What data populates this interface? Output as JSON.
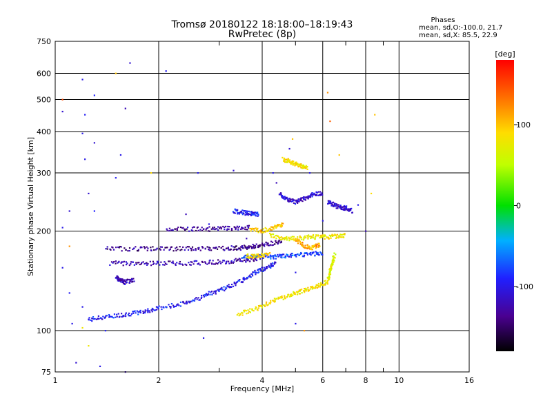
{
  "chart_data": {
    "type": "scatter",
    "title": "Tromsø 20180122 18:18:00–18:19:43",
    "subtitle": "RwPretec (8p)",
    "xlabel": "Frequency [MHz]",
    "ylabel": "Stationary phase Virtual Height [km]",
    "x_scale": "log",
    "y_scale": "log",
    "xlim": [
      1,
      16
    ],
    "ylim": [
      75,
      750
    ],
    "x_ticks": [
      1,
      2,
      4,
      6,
      8,
      10,
      16
    ],
    "x_tick_labels": [
      "1",
      "2",
      "4",
      "6",
      "8",
      "10",
      "16"
    ],
    "x_minor_ticks": [
      3,
      5,
      7,
      9
    ],
    "y_ticks": [
      75,
      100,
      200,
      300,
      400,
      500,
      600,
      750
    ],
    "y_tick_labels": [
      "75",
      "100",
      "200",
      "300",
      "400",
      "500",
      "600",
      "750"
    ],
    "grid": true,
    "phase_info": {
      "heading": "Phases",
      "line_o": "mean, sd,O:-100.0, 21.7",
      "line_x": "mean, sd,X:  85.5, 22.9"
    },
    "colorbar": {
      "label": "[deg]",
      "range": [
        -180,
        180
      ],
      "ticks": [
        100,
        0,
        -100
      ],
      "tick_labels": [
        "100",
        "0",
        "-100"
      ]
    },
    "traces": [
      {
        "points": [
          [
            1.25,
            108
          ],
          [
            1.4,
            110
          ],
          [
            1.6,
            112
          ],
          [
            1.8,
            114
          ],
          [
            2.0,
            117
          ],
          [
            2.3,
            120
          ],
          [
            2.6,
            125
          ],
          [
            2.9,
            131
          ],
          [
            3.2,
            136
          ],
          [
            3.5,
            142
          ],
          [
            3.8,
            150
          ],
          [
            4.1,
            155
          ],
          [
            4.4,
            160
          ]
        ],
        "phase": -95
      },
      {
        "points": [
          [
            1.4,
            177
          ],
          [
            1.7,
            177
          ],
          [
            2.0,
            177
          ],
          [
            2.4,
            177
          ],
          [
            2.8,
            177
          ],
          [
            3.2,
            178
          ],
          [
            3.5,
            178
          ],
          [
            3.8,
            180
          ],
          [
            4.2,
            183
          ],
          [
            4.6,
            188
          ]
        ],
        "phase": -135
      },
      {
        "points": [
          [
            1.45,
            160
          ],
          [
            1.7,
            160
          ],
          [
            2.0,
            160
          ],
          [
            2.4,
            160
          ],
          [
            2.8,
            161
          ],
          [
            3.2,
            162
          ],
          [
            3.6,
            164
          ],
          [
            4.0,
            166
          ]
        ],
        "phase": -125
      },
      {
        "points": [
          [
            2.1,
            202
          ],
          [
            2.5,
            203
          ],
          [
            2.9,
            203
          ],
          [
            3.3,
            204
          ],
          [
            3.7,
            205
          ]
        ],
        "phase": -130
      },
      {
        "points": [
          [
            3.5,
            166
          ],
          [
            3.8,
            168
          ],
          [
            4.2,
            167
          ],
          [
            4.6,
            168
          ],
          [
            5.0,
            170
          ],
          [
            5.5,
            170
          ],
          [
            6.0,
            172
          ]
        ],
        "phase": -80
      },
      {
        "points": [
          [
            3.6,
            168
          ],
          [
            3.9,
            168
          ],
          [
            4.2,
            170
          ]
        ],
        "phase": 85
      },
      {
        "points": [
          [
            4.2,
            195
          ],
          [
            4.6,
            190
          ],
          [
            5.0,
            190
          ],
          [
            5.5,
            192
          ],
          [
            6.0,
            192
          ],
          [
            6.5,
            193
          ],
          [
            7.0,
            194
          ]
        ],
        "phase": 80
      },
      {
        "points": [
          [
            3.4,
            112
          ],
          [
            3.8,
            116
          ],
          [
            4.2,
            122
          ],
          [
            4.6,
            126
          ],
          [
            5.0,
            130
          ],
          [
            5.4,
            133
          ],
          [
            5.8,
            137
          ],
          [
            6.2,
            140
          ]
        ],
        "phase": 80
      },
      {
        "points": [
          [
            6.2,
            140
          ],
          [
            6.3,
            152
          ],
          [
            6.4,
            160
          ],
          [
            6.5,
            170
          ]
        ],
        "phase": 70
      },
      {
        "points": [
          [
            4.5,
            260
          ],
          [
            4.7,
            250
          ],
          [
            5.0,
            245
          ],
          [
            5.3,
            250
          ],
          [
            5.6,
            258
          ],
          [
            6.0,
            260
          ]
        ],
        "phase": -110
      },
      {
        "points": [
          [
            4.6,
            330
          ],
          [
            4.8,
            325
          ],
          [
            5.0,
            320
          ],
          [
            5.2,
            315
          ],
          [
            5.4,
            310
          ]
        ],
        "phase": 85
      },
      {
        "points": [
          [
            6.2,
            245
          ],
          [
            6.5,
            240
          ],
          [
            6.8,
            235
          ],
          [
            7.0,
            235
          ],
          [
            7.3,
            230
          ]
        ],
        "phase": -110
      },
      {
        "points": [
          [
            1.5,
            145
          ],
          [
            1.55,
            142
          ],
          [
            1.6,
            140
          ],
          [
            1.7,
            143
          ]
        ],
        "phase": -120
      },
      {
        "points": [
          [
            3.3,
            230
          ],
          [
            3.5,
            228
          ],
          [
            3.7,
            226
          ],
          [
            3.9,
            225
          ]
        ],
        "phase": -95
      },
      {
        "points": [
          [
            3.7,
            202
          ],
          [
            4.0,
            200
          ],
          [
            4.3,
            205
          ],
          [
            4.6,
            210
          ]
        ],
        "phase": 100
      },
      {
        "points": [
          [
            5.0,
            190
          ],
          [
            5.3,
            180
          ],
          [
            5.6,
            178
          ],
          [
            5.9,
            182
          ]
        ],
        "phase": 110
      }
    ],
    "scattered_points": [
      [
        1.05,
        460,
        -110
      ],
      [
        1.2,
        575,
        -100
      ],
      [
        1.22,
        450,
        -95
      ],
      [
        1.22,
        330,
        -100
      ],
      [
        1.25,
        260,
        -110
      ],
      [
        1.05,
        500,
        150
      ],
      [
        1.5,
        600,
        100
      ],
      [
        1.6,
        470,
        -120
      ],
      [
        1.55,
        340,
        -100
      ],
      [
        1.3,
        515,
        -90
      ],
      [
        1.65,
        645,
        -110
      ],
      [
        2.1,
        610,
        -95
      ],
      [
        1.2,
        395,
        -100
      ],
      [
        1.3,
        370,
        -110
      ],
      [
        1.5,
        290,
        -95
      ],
      [
        1.9,
        300,
        90
      ],
      [
        2.6,
        300,
        -100
      ],
      [
        3.3,
        305,
        -110
      ],
      [
        1.1,
        180,
        120
      ],
      [
        1.05,
        155,
        -100
      ],
      [
        1.1,
        130,
        -95
      ],
      [
        1.2,
        118,
        -100
      ],
      [
        1.15,
        80,
        -110
      ],
      [
        1.35,
        78,
        -100
      ],
      [
        1.6,
        75,
        -120
      ],
      [
        1.25,
        90,
        80
      ],
      [
        2.7,
        95,
        -100
      ],
      [
        1.4,
        100,
        -90
      ],
      [
        1.2,
        102,
        80
      ],
      [
        1.12,
        105,
        -100
      ],
      [
        3.6,
        190,
        -120
      ],
      [
        5.5,
        300,
        -100
      ],
      [
        6.3,
        430,
        140
      ],
      [
        6.2,
        525,
        120
      ],
      [
        8.5,
        450,
        100
      ],
      [
        8.3,
        260,
        90
      ],
      [
        7.6,
        240,
        -100
      ],
      [
        8.0,
        200,
        -120
      ],
      [
        6.0,
        215,
        -100
      ],
      [
        6.7,
        340,
        100
      ],
      [
        5.0,
        105,
        -100
      ],
      [
        5.3,
        100,
        120
      ],
      [
        5.0,
        150,
        -100
      ],
      [
        4.8,
        355,
        -110
      ],
      [
        4.9,
        380,
        100
      ],
      [
        4.4,
        280,
        -120
      ],
      [
        4.3,
        300,
        -100
      ],
      [
        3.5,
        180,
        -110
      ],
      [
        1.1,
        230,
        -110
      ],
      [
        1.05,
        205,
        -100
      ],
      [
        1.3,
        230,
        -90
      ],
      [
        2.4,
        225,
        -120
      ],
      [
        2.8,
        210,
        -100
      ]
    ]
  }
}
